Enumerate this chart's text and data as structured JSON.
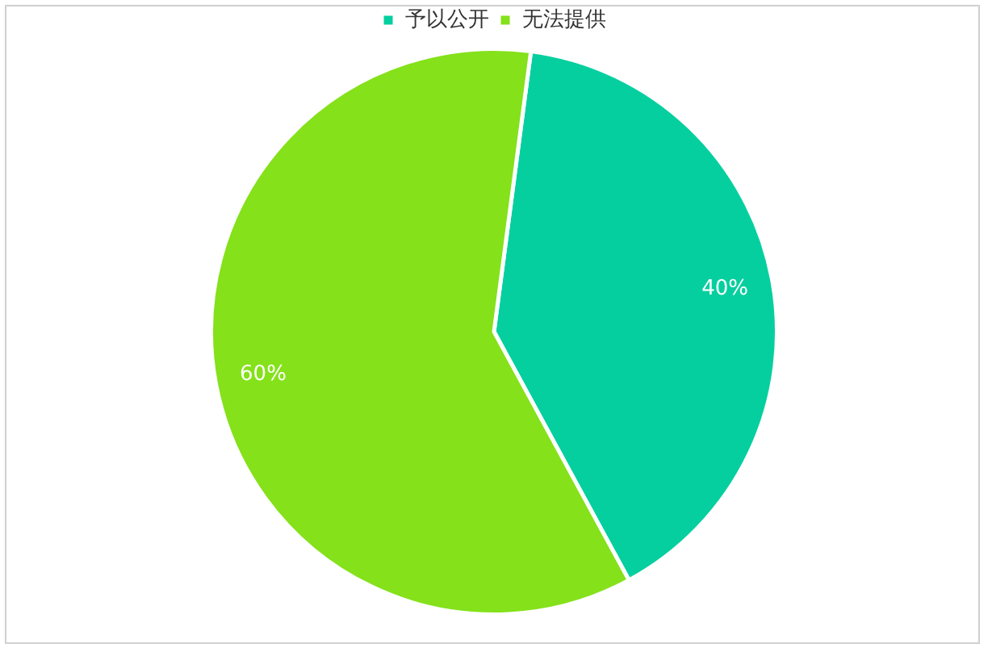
{
  "chart_data": {
    "type": "pie",
    "categories": [
      "予以公开",
      "无法提供"
    ],
    "values": [
      40,
      60
    ],
    "colors": [
      "#05cf9f",
      "#84e11a"
    ],
    "value_labels": [
      "40%",
      "60%"
    ],
    "legend": "top"
  }
}
